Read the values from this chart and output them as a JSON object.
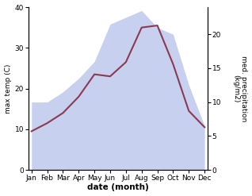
{
  "months": [
    "Jan",
    "Feb",
    "Mar",
    "Apr",
    "May",
    "Jun",
    "Jul",
    "Aug",
    "Sep",
    "Oct",
    "Nov",
    "Dec"
  ],
  "x": [
    0,
    1,
    2,
    3,
    4,
    5,
    6,
    7,
    8,
    9,
    10,
    11
  ],
  "temp": [
    9.5,
    11.5,
    14.0,
    18.0,
    23.5,
    23.0,
    26.5,
    35.0,
    35.5,
    26.0,
    14.5,
    10.5
  ],
  "precip": [
    10.0,
    10.0,
    11.5,
    13.5,
    16.0,
    21.5,
    22.5,
    23.5,
    21.0,
    20.0,
    12.5,
    6.5
  ],
  "temp_color": "#8B3A52",
  "precip_fill_color": "#c8d0f0",
  "temp_ylim": [
    0,
    40
  ],
  "precip_ylim": [
    0,
    24
  ],
  "precip_yticks": [
    0,
    5,
    10,
    15,
    20
  ],
  "temp_yticks": [
    0,
    10,
    20,
    30,
    40
  ],
  "ylabel_left": "max temp (C)",
  "ylabel_right": "med. precipitation\n(kg/m2)",
  "xlabel": "date (month)",
  "background_color": "#ffffff",
  "line_width": 1.5,
  "fig_width": 3.18,
  "fig_height": 2.47,
  "dpi": 100
}
